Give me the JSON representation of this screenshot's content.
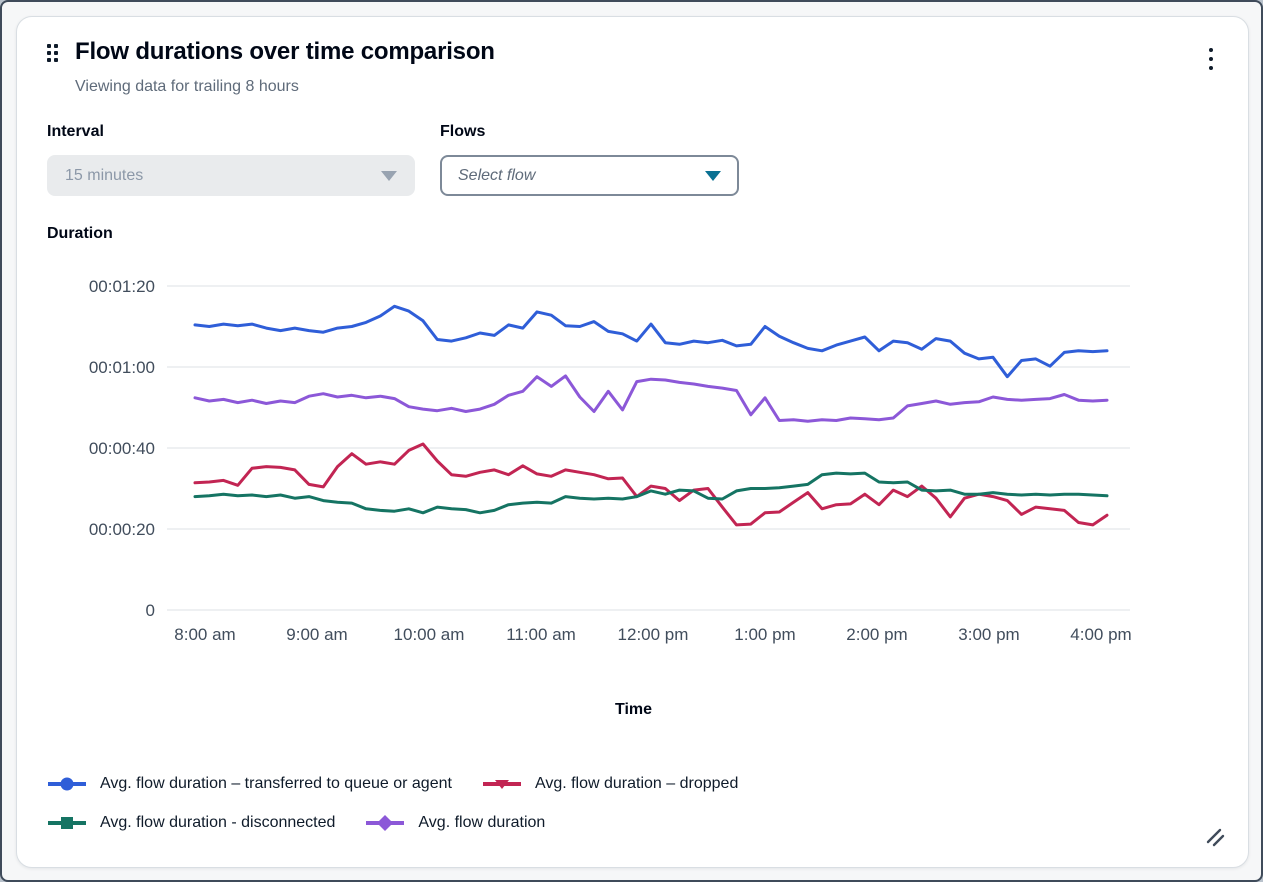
{
  "widget": {
    "title": "Flow durations over time comparison",
    "subtitle": "Viewing data for trailing 8 hours"
  },
  "controls": {
    "interval": {
      "label": "Interval",
      "value": "15 minutes",
      "state": "disabled"
    },
    "flows": {
      "label": "Flows",
      "placeholder": "Select flow"
    }
  },
  "theme": {
    "flows_caret": "#0a7193",
    "grid_color": "#e9ebed",
    "tick_text": "#414d5c",
    "text_dark": "#000716",
    "text_secondary": "#5f6b7a"
  },
  "chart_data": {
    "type": "line",
    "title": "",
    "xlabel": "Time",
    "ylabel": "Duration",
    "grid": true,
    "legend_position": "bottom",
    "ylim_seconds": [
      0,
      80
    ],
    "y_tick_seconds": [
      80,
      60,
      40,
      20,
      0
    ],
    "y_tick_labels": [
      "00:01:20",
      "00:01:00",
      "00:00:40",
      "00:00:20",
      "0"
    ],
    "x_tick_labels": [
      "8:00 am",
      "9:00 am",
      "10:00 am",
      "11:00 am",
      "12:00 pm",
      "1:00 pm",
      "2:00 pm",
      "3:00 pm",
      "4:00 pm"
    ],
    "x_range_minutes": [
      0,
      480
    ],
    "point_step_minutes": 7.5,
    "series": [
      {
        "name": "Avg. flow duration – transferred to queue or agent",
        "color": "#2f5ed8",
        "marker": "circle",
        "values_seconds": [
          70.4,
          70.0,
          70.6,
          70.2,
          70.6,
          69.6,
          69.0,
          69.6,
          69.0,
          68.6,
          69.6,
          70.0,
          71.0,
          72.6,
          75.0,
          73.8,
          71.4,
          66.8,
          66.4,
          67.2,
          68.4,
          67.8,
          70.4,
          69.6,
          73.6,
          72.8,
          70.2,
          70.0,
          71.2,
          68.8,
          68.2,
          66.4,
          70.6,
          66.0,
          65.6,
          66.4,
          66.0,
          66.6,
          65.2,
          65.6,
          70.0,
          67.6,
          66.0,
          64.6,
          64.0,
          65.4,
          66.4,
          67.4,
          64.0,
          66.4,
          66.0,
          64.4,
          67.0,
          66.4,
          63.4,
          62.0,
          62.4,
          57.6,
          61.6,
          62.0,
          60.2,
          63.6,
          64.0,
          63.8,
          64.0
        ]
      },
      {
        "name": "Avg. flow duration – dropped",
        "color": "#c22553",
        "marker": "triangle-down",
        "values_seconds": [
          31.4,
          31.6,
          32.0,
          30.8,
          35.0,
          35.4,
          35.2,
          34.6,
          31.0,
          30.4,
          35.4,
          38.6,
          36.0,
          36.6,
          36.0,
          39.4,
          41.0,
          36.8,
          33.4,
          33.0,
          34.0,
          34.6,
          33.4,
          35.6,
          33.6,
          33.0,
          34.6,
          34.0,
          33.4,
          32.4,
          32.6,
          28.0,
          30.6,
          30.0,
          27.0,
          29.6,
          30.0,
          25.4,
          21.0,
          21.2,
          24.0,
          24.2,
          26.6,
          29.0,
          25.0,
          26.0,
          26.2,
          28.6,
          26.0,
          29.6,
          28.0,
          30.6,
          27.6,
          23.0,
          27.6,
          28.6,
          28.0,
          27.0,
          23.6,
          25.4,
          25.0,
          24.6,
          21.6,
          21.0,
          23.4
        ]
      },
      {
        "name": "Avg. flow duration - disconnected",
        "color": "#157463",
        "marker": "square",
        "values_seconds": [
          28.0,
          28.2,
          28.6,
          28.2,
          28.4,
          28.0,
          28.4,
          27.6,
          28.0,
          27.0,
          26.6,
          26.4,
          25.0,
          24.6,
          24.4,
          25.0,
          24.0,
          25.4,
          25.0,
          24.8,
          24.0,
          24.6,
          26.0,
          26.4,
          26.6,
          26.4,
          28.0,
          27.6,
          27.4,
          27.6,
          27.4,
          28.0,
          29.4,
          28.6,
          29.6,
          29.4,
          27.6,
          27.4,
          29.4,
          30.0,
          30.0,
          30.2,
          30.6,
          31.0,
          33.4,
          33.8,
          33.6,
          33.8,
          31.6,
          31.4,
          31.6,
          29.6,
          29.4,
          29.6,
          28.6,
          28.6,
          29.0,
          28.6,
          28.4,
          28.6,
          28.4,
          28.6,
          28.6,
          28.4,
          28.2
        ]
      },
      {
        "name": "Avg. flow duration",
        "color": "#8c58d8",
        "marker": "diamond",
        "values_seconds": [
          52.4,
          51.6,
          52.0,
          51.2,
          51.8,
          51.0,
          51.6,
          51.2,
          52.8,
          53.4,
          52.6,
          53.0,
          52.4,
          52.8,
          52.2,
          50.2,
          49.6,
          49.2,
          49.8,
          49.0,
          49.6,
          50.8,
          53.0,
          54.0,
          57.6,
          55.2,
          57.8,
          52.6,
          49.0,
          54.0,
          49.4,
          56.4,
          57.0,
          56.8,
          56.2,
          55.8,
          55.2,
          54.8,
          54.2,
          48.2,
          52.4,
          46.8,
          47.0,
          46.6,
          47.0,
          46.8,
          47.4,
          47.2,
          47.0,
          47.4,
          50.4,
          51.0,
          51.6,
          50.8,
          51.2,
          51.4,
          52.6,
          52.0,
          51.8,
          52.0,
          52.2,
          53.2,
          51.8,
          51.6,
          51.8
        ]
      }
    ]
  }
}
